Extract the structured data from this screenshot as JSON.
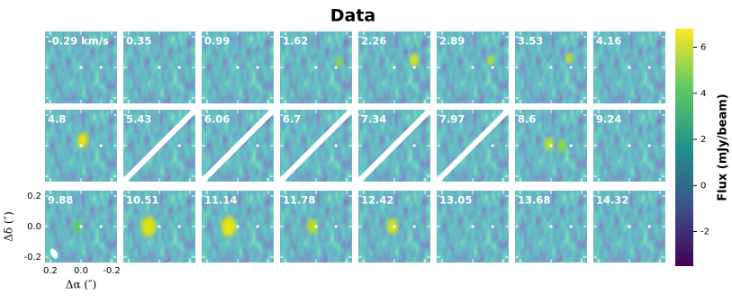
{
  "chart_data": {
    "type": "channel-map",
    "title": "Data",
    "channels": [
      "-0.29 km/s",
      "0.35",
      "0.99",
      "1.62",
      "2.26",
      "2.89",
      "3.53",
      "4.16",
      "4.8",
      "5.43",
      "6.06",
      "6.7",
      "7.34",
      "7.97",
      "8.6",
      "9.24",
      "9.88",
      "10.51",
      "11.14",
      "11.78",
      "12.42",
      "13.05",
      "13.68",
      "14.32"
    ],
    "columns": 8,
    "x_label": "Δα (″)",
    "y_label": "Δδ (″)",
    "xlim": [
      0.235,
      -0.235
    ],
    "ylim": [
      -0.235,
      0.235
    ],
    "xticks": [
      {
        "value": 0.2,
        "label": "0.2"
      },
      {
        "value": 0,
        "label": "0.0"
      },
      {
        "value": -0.2,
        "label": "-0.2"
      }
    ],
    "yticks": [
      {
        "value": 0.2,
        "label": "0.2"
      },
      {
        "value": 0,
        "label": "0.0"
      },
      {
        "value": -0.2,
        "label": "-0.2"
      }
    ],
    "colorbar": {
      "label": "Flux (mJy/beam)",
      "clim": [
        -3.5,
        6.8
      ],
      "ticks": [
        -2,
        0,
        2,
        4,
        6
      ],
      "colormap": "viridis"
    }
  }
}
